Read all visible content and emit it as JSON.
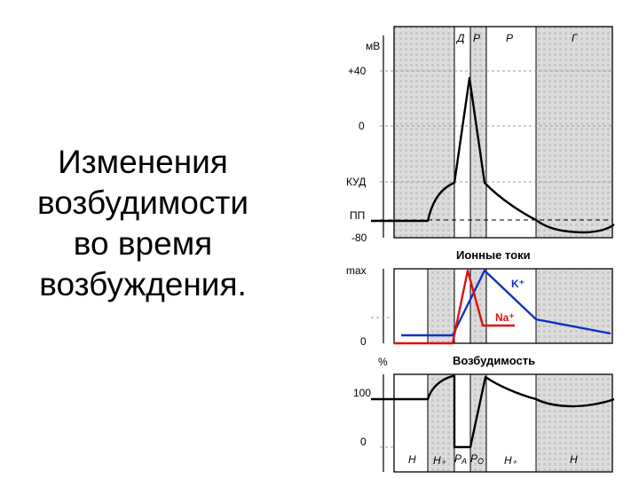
{
  "title": {
    "lines": [
      "Изменения",
      "возбудимости",
      "во время",
      "возбуждения."
    ]
  },
  "colors": {
    "shade": "#d9d9d9",
    "hatch": "#bfbfbf",
    "grid": "#9a9a9a",
    "potassium": "#1030c8",
    "sodium": "#e01010",
    "curve": "#000000"
  },
  "panels": {
    "potential": {
      "unit_label": "мВ",
      "y_ticks": [
        "+40",
        "0",
        "КУД",
        "ПП",
        "-80"
      ],
      "phase_labels": [
        "Д",
        "Р",
        "Р",
        "Г"
      ]
    },
    "ionic": {
      "heading": "Ионные токи",
      "y_ticks": [
        "max",
        "0"
      ],
      "series_labels": [
        "K⁺",
        "Na⁺"
      ]
    },
    "excitability": {
      "heading": "Возбудимость",
      "y_ticks": [
        "%",
        "100",
        "0"
      ],
      "phase_labels": [
        "Н",
        "Н₊",
        "Р",
        "А",
        "Р",
        "О",
        "Н₊",
        "Н"
      ]
    }
  }
}
